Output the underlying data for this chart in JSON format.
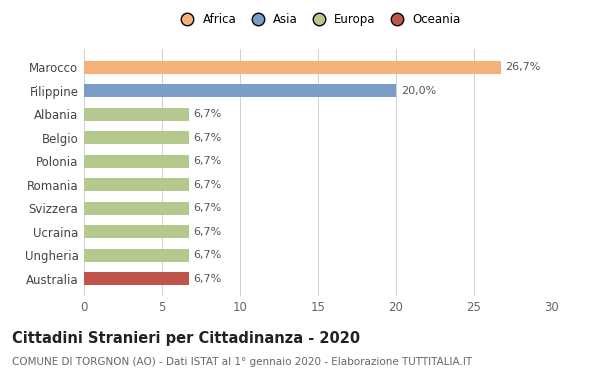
{
  "categories": [
    "Marocco",
    "Filippine",
    "Albania",
    "Belgio",
    "Polonia",
    "Romania",
    "Svizzera",
    "Ucraina",
    "Ungheria",
    "Australia"
  ],
  "values": [
    26.7,
    20.0,
    6.7,
    6.7,
    6.7,
    6.7,
    6.7,
    6.7,
    6.7,
    6.7
  ],
  "labels": [
    "26,7%",
    "20,0%",
    "6,7%",
    "6,7%",
    "6,7%",
    "6,7%",
    "6,7%",
    "6,7%",
    "6,7%",
    "6,7%"
  ],
  "colors": [
    "#F4B27A",
    "#7A9EC6",
    "#B5C98E",
    "#B5C98E",
    "#B5C98E",
    "#B5C98E",
    "#B5C98E",
    "#B5C98E",
    "#B5C98E",
    "#C0544A"
  ],
  "legend_labels": [
    "Africa",
    "Asia",
    "Europa",
    "Oceania"
  ],
  "legend_colors": [
    "#F4B27A",
    "#7A9EC6",
    "#B5C98E",
    "#C0544A"
  ],
  "title": "Cittadini Stranieri per Cittadinanza - 2020",
  "subtitle": "COMUNE DI TORGNON (AO) - Dati ISTAT al 1° gennaio 2020 - Elaborazione TUTTITALIA.IT",
  "xlim": [
    0,
    30
  ],
  "xticks": [
    0,
    5,
    10,
    15,
    20,
    25,
    30
  ],
  "background_color": "#ffffff",
  "grid_color": "#d0d0d0",
  "title_fontsize": 10.5,
  "subtitle_fontsize": 7.5,
  "label_fontsize": 8,
  "tick_fontsize": 8.5,
  "bar_height": 0.55
}
